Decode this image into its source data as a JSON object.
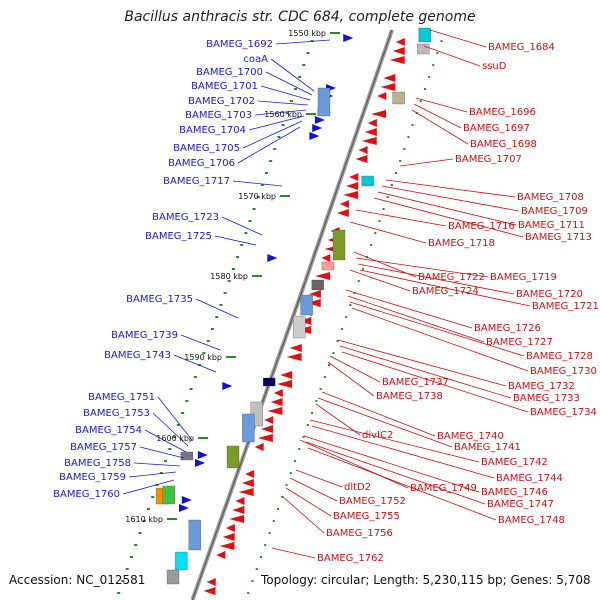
{
  "title": "Bacillus anthracis str. CDC 684, complete genome",
  "accession": "Accession: NC_012581",
  "topology": "Topology: circular; Length: 5,230,115 bp; Genes: 5,708",
  "colors": {
    "left_label": "#1a1ad6",
    "right_label": "#cc1111",
    "backbone": "#888888",
    "ticks": "#2a8a2a"
  },
  "kbp_marks": [
    "1550 kbp",
    "1560 kbp",
    "1570 kbp",
    "1580 kbp",
    "1590 kbp",
    "1600 kbp",
    "1610 kbp"
  ],
  "left_genes": [
    "BAMEG_1692",
    "coaA",
    "BAMEG_1700",
    "BAMEG_1701",
    "BAMEG_1702",
    "BAMEG_1703",
    "BAMEG_1704",
    "BAMEG_1705",
    "BAMEG_1706",
    "BAMEG_1717",
    "BAMEG_1723",
    "BAMEG_1725",
    "BAMEG_1735",
    "BAMEG_1739",
    "BAMEG_1743",
    "BAMEG_1751",
    "BAMEG_1753",
    "BAMEG_1754",
    "BAMEG_1757",
    "BAMEG_1758",
    "BAMEG_1759",
    "BAMEG_1760"
  ],
  "right_genes": [
    "BAMEG_1684",
    "ssuD",
    "BAMEG_1696",
    "BAMEG_1697",
    "BAMEG_1698",
    "BAMEG_1707",
    "BAMEG_1708",
    "BAMEG_1709",
    "BAMEG_1711",
    "BAMEG_1716",
    "BAMEG_1713",
    "BAMEG_1718",
    "BAMEG_1722",
    "BAMEG_1719",
    "BAMEG_1720",
    "BAMEG_1724",
    "BAMEG_1721",
    "BAMEG_1726",
    "BAMEG_1727",
    "BAMEG_1728",
    "BAMEG_1730",
    "BAMEG_1737",
    "BAMEG_1732",
    "BAMEG_1738",
    "BAMEG_1733",
    "BAMEG_1734",
    "divIC2",
    "BAMEG_1740",
    "BAMEG_1741",
    "BAMEG_1742",
    "BAMEG_1744",
    "BAMEG_1749",
    "dltD2",
    "BAMEG_1746",
    "BAMEG_1752",
    "BAMEG_1747",
    "BAMEG_1755",
    "BAMEG_1748",
    "BAMEG_1756",
    "BAMEG_1762"
  ]
}
